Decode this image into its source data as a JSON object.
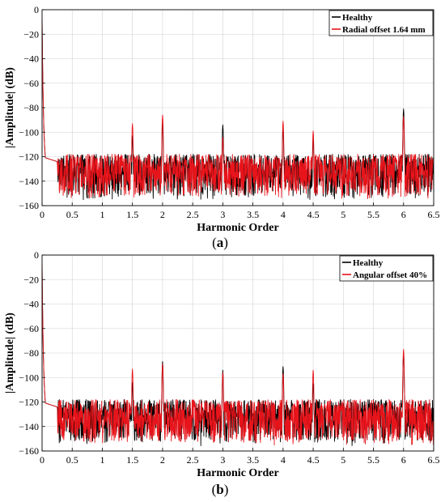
{
  "chart_data": [
    {
      "type": "line",
      "panel_label": "a",
      "xlabel": "Harmonic Order",
      "ylabel": "|Amplitude| (dB)",
      "xlim": [
        0,
        6.5
      ],
      "ylim": [
        -160,
        0
      ],
      "xticks": [
        0,
        0.5,
        1,
        1.5,
        2,
        2.5,
        3,
        3.5,
        4,
        4.5,
        5,
        5.5,
        6,
        6.5
      ],
      "xtick_labels": [
        "0",
        "0.5",
        "1",
        "1.5",
        "2",
        "2.5",
        "3",
        "3.5",
        "4",
        "4.5",
        "5",
        "5.5",
        "6",
        "6.5"
      ],
      "yticks": [
        0,
        -20,
        -40,
        -60,
        -80,
        -100,
        -120,
        -140,
        -160
      ],
      "ytick_labels": [
        "0",
        "−20",
        "−40",
        "−60",
        "−80",
        "−100",
        "−120",
        "−140",
        "−160"
      ],
      "grid": true,
      "legend_position": "top-right",
      "series": [
        {
          "name": "Healthy",
          "color": "#000000",
          "peaks": [
            [
              1.5,
              -103
            ],
            [
              2.0,
              -91
            ],
            [
              3.0,
              -94
            ],
            [
              4.0,
              -96
            ],
            [
              4.5,
              -105
            ],
            [
              6.0,
              -81
            ]
          ]
        },
        {
          "name": "Radial offset 1.64 mm",
          "color": "#e8141b",
          "peaks": [
            [
              1.5,
              -93
            ],
            [
              2.0,
              -86
            ],
            [
              3.0,
              -104
            ],
            [
              4.0,
              -91
            ],
            [
              4.5,
              -99
            ],
            [
              6.0,
              -87
            ]
          ]
        }
      ]
    },
    {
      "type": "line",
      "panel_label": "b",
      "xlabel": "Harmonic Order",
      "ylabel": "|Amplitude| (dB)",
      "xlim": [
        0,
        6.5
      ],
      "ylim": [
        -160,
        0
      ],
      "xticks": [
        0,
        0.5,
        1,
        1.5,
        2,
        2.5,
        3,
        3.5,
        4,
        4.5,
        5,
        5.5,
        6,
        6.5
      ],
      "xtick_labels": [
        "0",
        "0.5",
        "1",
        "1.5",
        "2",
        "2.5",
        "3",
        "3.5",
        "4",
        "4.5",
        "5",
        "5.5",
        "6",
        "6.5"
      ],
      "yticks": [
        0,
        -20,
        -40,
        -60,
        -80,
        -100,
        -120,
        -140,
        -160
      ],
      "ytick_labels": [
        "0",
        "−20",
        "−40",
        "−60",
        "−80",
        "−100",
        "−120",
        "−140",
        "−160"
      ],
      "grid": true,
      "legend_position": "top-right",
      "series": [
        {
          "name": "Healthy",
          "color": "#000000",
          "peaks": [
            [
              1.5,
              -104
            ],
            [
              2.0,
              -87
            ],
            [
              3.0,
              -94
            ],
            [
              4.0,
              -91
            ],
            [
              4.5,
              -105
            ],
            [
              6.0,
              -80
            ]
          ]
        },
        {
          "name": "Angular offset 40%",
          "color": "#e8141b",
          "peaks": [
            [
              1.5,
              -93
            ],
            [
              2.0,
              -89
            ],
            [
              3.0,
              -96
            ],
            [
              4.0,
              -97
            ],
            [
              4.5,
              -94
            ],
            [
              6.0,
              -77
            ]
          ]
        }
      ]
    }
  ]
}
